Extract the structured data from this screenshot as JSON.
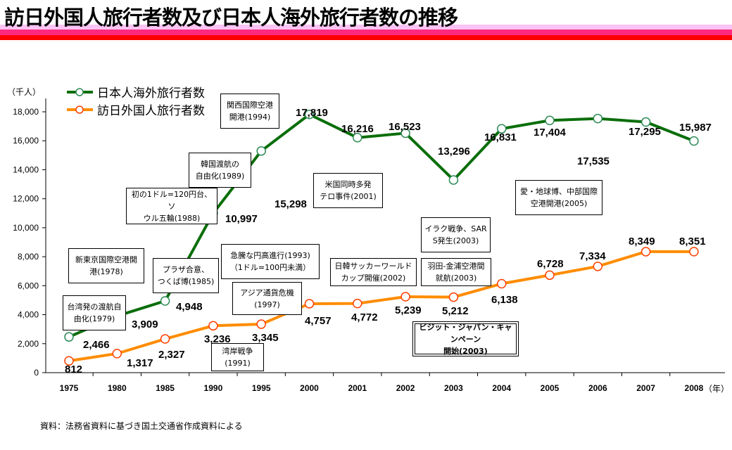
{
  "title": "訪日外国人旅行者数及び日本人海外旅行者数の推移",
  "source_note": "資料：法務省資料に基づき国土交通省作成資料による",
  "colors": {
    "green": "#0a6e0a",
    "orange": "#ff8c00",
    "orange_marker": "#ff4000",
    "green_marker": "#2e8b57"
  },
  "chart_data": {
    "type": "line",
    "title": "訪日外国人旅行者数及び日本人海外旅行者数の推移",
    "ylabel": "（千人）",
    "xlabel": "（年）",
    "ylim": [
      0,
      18000
    ],
    "yticks": [
      "0",
      "2,000",
      "4,000",
      "6,000",
      "8,000",
      "10,000",
      "12,000",
      "14,000",
      "16,000",
      "18,000"
    ],
    "categories": [
      "1975",
      "1980",
      "1985",
      "1990",
      "1995",
      "2000",
      "2001",
      "2002",
      "2003",
      "2004",
      "2005",
      "2006",
      "2007",
      "2008"
    ],
    "legend_position": "top-left",
    "series": [
      {
        "name": "日本人海外旅行者数",
        "values": [
          2466,
          3909,
          4948,
          10997,
          15298,
          17819,
          16216,
          16523,
          13296,
          16831,
          17404,
          17535,
          17295,
          15987
        ],
        "labels": [
          "2,466",
          "3,909",
          "4,948",
          "10,997",
          "15,298",
          "17,819",
          "16,216",
          "16,523",
          "13,296",
          "16,831",
          "17,404",
          "17,535",
          "17,295",
          "15,987"
        ]
      },
      {
        "name": "訪日外国人旅行者数",
        "values": [
          812,
          1317,
          2327,
          3236,
          3345,
          4757,
          4772,
          5239,
          5212,
          6138,
          6728,
          7334,
          8349,
          8351
        ],
        "labels": [
          "812",
          "1,317",
          "2,327",
          "3,236",
          "3,345",
          "4,757",
          "4,772",
          "5,239",
          "5,212",
          "6,138",
          "6,728",
          "7,334",
          "8,349",
          "8,351"
        ]
      }
    ],
    "annotations": [
      {
        "l1": "関西国際空港",
        "l2": "開港(1994)"
      },
      {
        "l1": "韓国渡航の",
        "l2": "自由化(1989)"
      },
      {
        "l1": "初の1ドル=120円台、ソ",
        "l2": "ウル五輪(1988)"
      },
      {
        "l1": "米国同時多発",
        "l2": "テロ事件(2001)"
      },
      {
        "l1": "新東京国際空港開",
        "l2": "港(1978)"
      },
      {
        "l1": "プラザ合意、",
        "l2": "つくば博(1985)"
      },
      {
        "l1": "急騰な円高進行(1993)",
        "l2": "（1ドル=100円未満）"
      },
      {
        "l1": "台湾発の渡航自",
        "l2": "由化(1979)"
      },
      {
        "l1": "アジア通貨危機",
        "l2": "(1997)"
      },
      {
        "l1": "湾岸戦争",
        "l2": "(1991)"
      },
      {
        "l1": "日韓サッカーワールド",
        "l2": "カップ開催(2002)"
      },
      {
        "l1": "羽田-金浦空港間",
        "l2": "就航(2003)"
      },
      {
        "l1": "イラク戦争、SAR",
        "l2": "S発生(2003)"
      },
      {
        "l1": "ビジット・ジャパン・キャンペーン",
        "l2": "開始(2003)"
      },
      {
        "l1": "愛・地球博、中部国際",
        "l2": "空港開港(2005)"
      }
    ]
  }
}
